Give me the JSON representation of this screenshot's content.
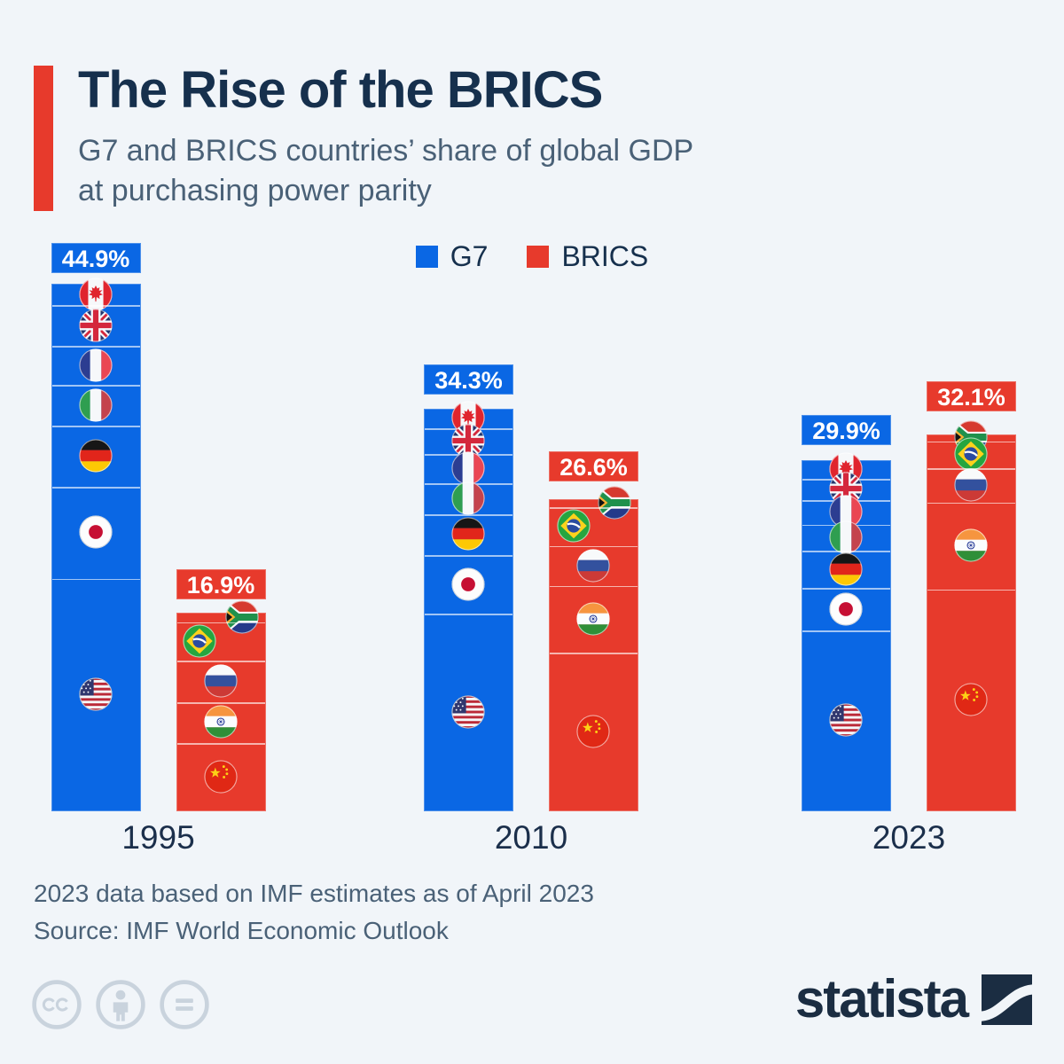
{
  "header": {
    "title": "The Rise of the BRICS",
    "subtitle_lines": [
      "G7 and BRICS countries’ share of global GDP",
      "at purchasing power parity"
    ]
  },
  "legend": [
    {
      "label": "G7",
      "color": "#0a67e4"
    },
    {
      "label": "BRICS",
      "color": "#e73a2c"
    }
  ],
  "chart_data": {
    "type": "bar",
    "variant": "stacked",
    "title": "G7 and BRICS countries’ share of global GDP at purchasing power parity",
    "unit": "% of global GDP at PPP",
    "categories": [
      "1995",
      "2010",
      "2023"
    ],
    "ylim": [
      0,
      46
    ],
    "grid": false,
    "legend_position": "top-center",
    "series": [
      {
        "name": "G7",
        "color": "#0a67e4",
        "totals": [
          44.9,
          34.3,
          29.9
        ],
        "total_labels": [
          "44.9%",
          "34.3%",
          "29.9%"
        ],
        "members": [
          "Canada",
          "United Kingdom",
          "France",
          "Italy",
          "Germany",
          "Japan",
          "United States"
        ],
        "segments": [
          [
            1.8,
            3.5,
            3.3,
            3.5,
            5.2,
            7.8,
            19.8
          ],
          [
            1.7,
            2.2,
            2.5,
            2.6,
            3.5,
            5.0,
            16.8
          ],
          [
            1.6,
            1.8,
            2.1,
            2.2,
            3.2,
            3.6,
            15.4
          ]
        ]
      },
      {
        "name": "BRICS",
        "color": "#e73a2c",
        "totals": [
          16.9,
          26.6,
          32.1
        ],
        "total_labels": [
          "16.9%",
          "26.6%",
          "32.1%"
        ],
        "members": [
          "South Africa",
          "Brazil",
          "Russia",
          "India",
          "China"
        ],
        "segments": [
          [
            0.8,
            3.3,
            3.5,
            3.5,
            5.8
          ],
          [
            0.7,
            3.3,
            3.4,
            5.7,
            13.5
          ],
          [
            0.6,
            2.3,
            2.9,
            7.4,
            18.9
          ]
        ]
      }
    ]
  },
  "footer": {
    "note": "2023 data based on IMF estimates as of April 2023",
    "source": "Source: IMF World Economic Outlook"
  },
  "branding": {
    "logo_text": "statista",
    "license_icons": [
      "cc-icon",
      "by-icon",
      "nd-icon"
    ]
  },
  "colors": {
    "background": "#f1f5f9",
    "g7_blue": "#0a67e4",
    "brics_red": "#e73a2c",
    "title_navy": "#16304d",
    "text_gray_blue": "#4a6177",
    "license_gray": "#c9d3dd",
    "logo_navy": "#1b2d42"
  }
}
